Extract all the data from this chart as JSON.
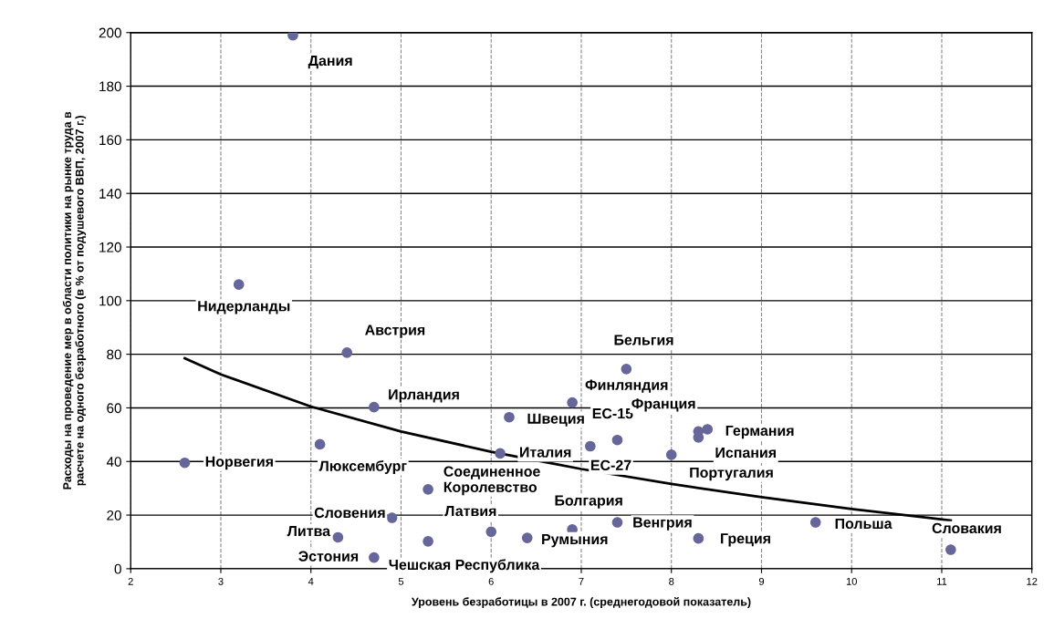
{
  "chart_data": {
    "type": "scatter",
    "xlabel": "Уровень безработицы в 2007 г. (среднегодовой показатель)",
    "ylabel": "Расходы на проведение мер в области политики на рынке труда в\nрасчете на одного безработного (в % от подушевого ВВП, 2007 г.)",
    "xlim": [
      2,
      12
    ],
    "xticks": [
      2,
      3,
      4,
      5,
      6,
      7,
      8,
      9,
      10,
      11,
      12
    ],
    "ylim": [
      0,
      200
    ],
    "yticks": [
      0,
      20,
      40,
      60,
      80,
      100,
      120,
      140,
      160,
      180,
      200
    ],
    "grid": true,
    "legend": false,
    "series": [
      {
        "marker": "circle",
        "color": "#66669a",
        "x": [
          3.8,
          3.2,
          4.4,
          4.7,
          4.1,
          2.6,
          4.9,
          4.3,
          4.7,
          5.3,
          5.3,
          6.0,
          6.4,
          6.9,
          6.1,
          6.2,
          6.9,
          7.4,
          7.1,
          7.5,
          8.3,
          8.4,
          8.3,
          8.0,
          7.4,
          8.3,
          9.6,
          11.1
        ],
        "values": [
          199,
          106,
          80.6,
          60.3,
          46.4,
          39.5,
          19,
          11.7,
          4.2,
          29.6,
          10.2,
          13.8,
          11.5,
          14.6,
          43,
          56.5,
          62,
          48,
          45.7,
          74.5,
          51.2,
          52,
          49,
          42.5,
          17.3,
          11.3,
          17.3,
          7.1
        ]
      },
      {
        "type": "line",
        "marker": "none",
        "color": "#000000",
        "x": [
          2.6,
          3,
          4,
          5,
          6,
          7,
          8,
          9,
          10,
          11.1
        ],
        "values": [
          78.5,
          72.5,
          60.5,
          51.2,
          43.6,
          37.2,
          31.6,
          26.7,
          22.3,
          18
        ]
      }
    ],
    "annotations": [
      {
        "text": "Дания",
        "x": 3.8,
        "y": 199
      },
      {
        "text": "Нидерланды",
        "x": 3.2,
        "y": 106
      },
      {
        "text": "Австрия",
        "x": 4.4,
        "y": 80.6
      },
      {
        "text": "Ирландия",
        "x": 4.7,
        "y": 60.3
      },
      {
        "text": "Люксембург",
        "x": 4.1,
        "y": 46.4
      },
      {
        "text": "Норвегия",
        "x": 2.6,
        "y": 39.5
      },
      {
        "text": "Словения",
        "x": 4.9,
        "y": 19
      },
      {
        "text": "Литва",
        "x": 4.3,
        "y": 11.7
      },
      {
        "text": "Эстония",
        "x": 4.7,
        "y": 4.2
      },
      {
        "text": "Соединенное\nКоролевство",
        "x": 5.3,
        "y": 29.6
      },
      {
        "text": "Латвия",
        "x": 5.3,
        "y": 10.2
      },
      {
        "text": "Чешская Республика",
        "x": 6.0,
        "y": 13.8
      },
      {
        "text": "Румыния",
        "x": 6.4,
        "y": 11.5
      },
      {
        "text": "Болгария",
        "x": 6.9,
        "y": 14.6
      },
      {
        "text": "Италия",
        "x": 6.1,
        "y": 43
      },
      {
        "text": "Швеция",
        "x": 6.2,
        "y": 56.5
      },
      {
        "text": "Финляндия",
        "x": 6.9,
        "y": 62
      },
      {
        "text": "ЕС-15",
        "x": 7.4,
        "y": 48
      },
      {
        "text": "ЕС-27",
        "x": 7.1,
        "y": 45.7
      },
      {
        "text": "Бельгия",
        "x": 7.5,
        "y": 74.5
      },
      {
        "text": "Франция",
        "x": 8.3,
        "y": 51.2
      },
      {
        "text": "Германия",
        "x": 8.4,
        "y": 52
      },
      {
        "text": "Испания",
        "x": 8.3,
        "y": 49
      },
      {
        "text": "Португалия",
        "x": 8.0,
        "y": 42.5
      },
      {
        "text": "Венгрия",
        "x": 7.4,
        "y": 17.3
      },
      {
        "text": "Греция",
        "x": 8.3,
        "y": 11.3
      },
      {
        "text": "Польша",
        "x": 9.6,
        "y": 17.3
      },
      {
        "text": "Словакия",
        "x": 11.1,
        "y": 7.1
      }
    ]
  }
}
